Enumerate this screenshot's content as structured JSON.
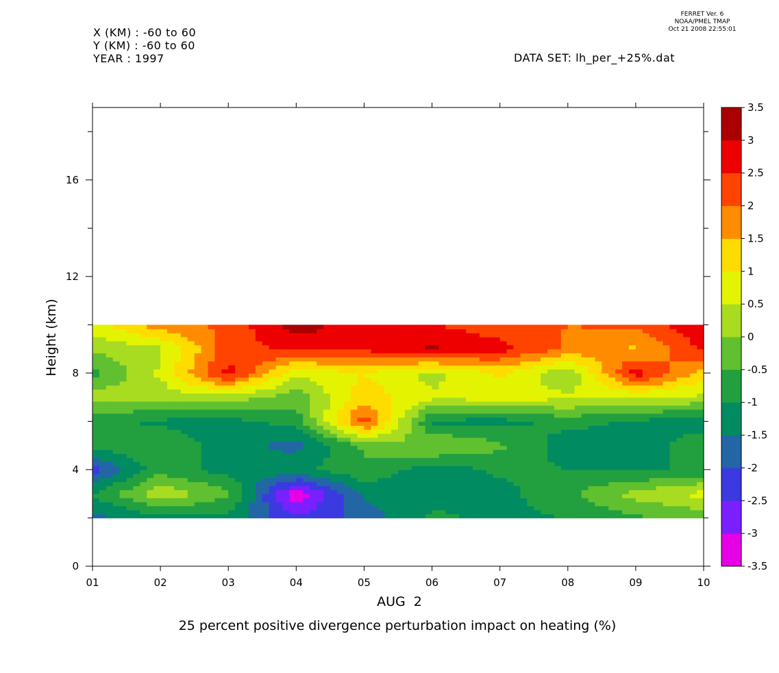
{
  "header": {
    "x_range": "X (KM) : -60 to 60",
    "y_range": "Y (KM) : -60 to 60",
    "year": "YEAR : 1997",
    "dataset": "DATA SET: lh_per_+25%.dat",
    "ferret_version": "FERRET Ver. 6",
    "ferret_org": "NOAA/PMEL TMAP",
    "ferret_date": "Oct 21 2008 22:55:01"
  },
  "chart_data": {
    "type": "heatmap",
    "title": "25 percent positive divergence perturbation impact on heating (%)",
    "xlabel": "AUG  2",
    "ylabel": "Height (km)",
    "x_ticks": [
      "01",
      "02",
      "03",
      "04",
      "05",
      "06",
      "07",
      "08",
      "09",
      "10"
    ],
    "y_ticks": [
      0,
      4,
      8,
      12,
      16
    ],
    "xlim": [
      1,
      10
    ],
    "ylim": [
      0,
      19
    ],
    "grid": false,
    "x": [
      1,
      2,
      3,
      4,
      5,
      6,
      7,
      8,
      9,
      10
    ],
    "heights": [
      2,
      3,
      4,
      5,
      6,
      7,
      8,
      9,
      10
    ],
    "z": [
      [
        -1.7,
        -1.2,
        -1.2,
        -2.4,
        -1.8,
        -0.9,
        -1.1,
        -1.0,
        -0.6,
        -0.4
      ],
      [
        -1.0,
        0.4,
        -0.4,
        -3.4,
        -1.4,
        -1.2,
        -1.2,
        -0.6,
        0.2,
        0.7
      ],
      [
        -2.2,
        -0.7,
        -1.2,
        -1.1,
        -0.6,
        -1.3,
        -0.9,
        -1.0,
        -1.1,
        -0.9
      ],
      [
        -0.8,
        -0.6,
        -1.3,
        -1.7,
        -0.4,
        0.1,
        -0.4,
        -1.3,
        -1.4,
        -0.6
      ],
      [
        -0.9,
        -1.1,
        -1.2,
        -0.8,
        2.3,
        -1.1,
        -1.2,
        -0.8,
        -1.1,
        -1.3
      ],
      [
        0.3,
        0.2,
        0.3,
        -0.3,
        1.3,
        0.6,
        0.7,
        0.6,
        0.5,
        0.4
      ],
      [
        -0.7,
        0.6,
        2.7,
        0.6,
        1.0,
        0.3,
        1.1,
        0.0,
        2.8,
        1.2
      ],
      [
        0.1,
        0.4,
        2.3,
        2.6,
        2.6,
        3.1,
        2.7,
        1.9,
        1.4,
        2.6
      ],
      [
        0.8,
        1.8,
        2.1,
        3.3,
        2.7,
        2.5,
        2.2,
        2.0,
        2.1,
        2.9
      ]
    ],
    "colorbar": {
      "levels": [
        -3.5,
        -3,
        -2.5,
        -2,
        -1.5,
        -1,
        -0.5,
        0,
        0.5,
        1,
        1.5,
        2,
        2.5,
        3,
        3.5
      ],
      "tick_labels": [
        "-3.5",
        "-3",
        "-2.5",
        "-2",
        "-1.5",
        "-1",
        "-0.5",
        "0",
        "0.5",
        "1",
        "1.5",
        "2",
        "2.5",
        "3",
        "3.5"
      ],
      "colors": [
        "#e600e6",
        "#7a20ff",
        "#3a3ae0",
        "#2266a6",
        "#008c60",
        "#22a040",
        "#60c030",
        "#a8dc20",
        "#e4f400",
        "#ffdc00",
        "#ff8c00",
        "#ff4400",
        "#ee0000",
        "#aa0000"
      ]
    }
  }
}
